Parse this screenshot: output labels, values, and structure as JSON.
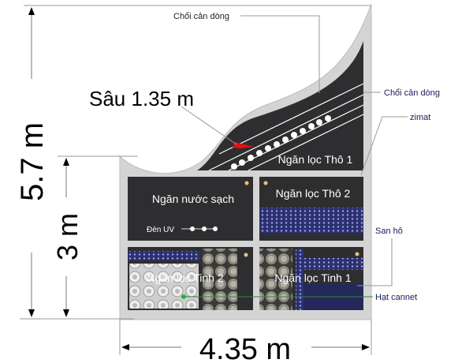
{
  "dimensions": {
    "total_height": "5.7 m",
    "lower_height": "3 m",
    "width": "4.35 m",
    "depth": "Sâu 1.35 m"
  },
  "chambers": {
    "coarse_1": "Ngăn lọc Thô 1",
    "coarse_2": "Ngăn lọc Thô 2",
    "clean_water": "Ngăn nước sạch",
    "fine_1": "Ngăn lọc Tinh 1",
    "fine_2": "Ngăn lọc Tinh 2",
    "uv_lamp": "Đèn UV"
  },
  "callouts": {
    "top": "Chổi cản dòng",
    "right": "Chổi cản dòng",
    "zimat": "zimat",
    "coral": "San hô",
    "cannet": "Hạt cannet"
  },
  "colors": {
    "wall": "#d4d4d4",
    "chamber": "#2e2e30",
    "media_blue": "#3a3f8f",
    "inlet_marker": "#e01010"
  }
}
